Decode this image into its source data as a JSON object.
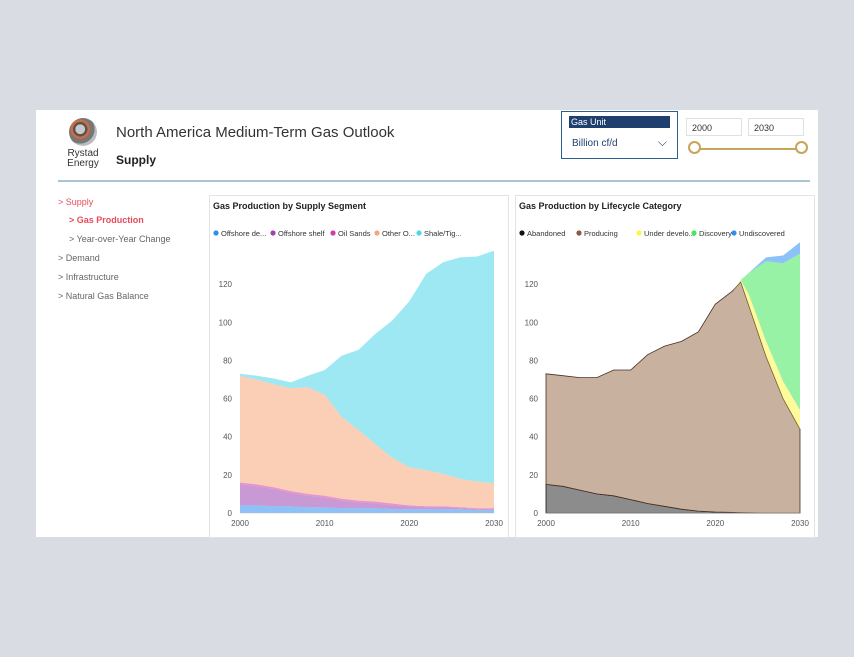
{
  "header": {
    "title": "North America Medium-Term Gas Outlook",
    "subtitle": "Supply",
    "logo_line1": "Rystad",
    "logo_line2": "Energy"
  },
  "controls": {
    "unit_label": "Gas Unit",
    "unit_value": "Billion cf/d",
    "year_start": "2000",
    "year_end": "2030"
  },
  "nav": [
    {
      "label": "> Supply"
    },
    {
      "label": "> Gas Production"
    },
    {
      "label": "> Year-over-Year Change"
    },
    {
      "label": "> Demand"
    },
    {
      "label": "> Infrastructure"
    },
    {
      "label": "> Natural Gas Balance"
    }
  ],
  "chart_data": [
    {
      "type": "area",
      "title": "Gas Production by Supply Segment",
      "stacked": true,
      "x": [
        2000,
        2002,
        2004,
        2006,
        2008,
        2010,
        2012,
        2014,
        2016,
        2018,
        2020,
        2022,
        2024,
        2026,
        2028,
        2030
      ],
      "series": [
        {
          "name": "Offshore de...",
          "color": "#2e8ff0",
          "values": [
            4,
            4,
            3.5,
            3.5,
            3,
            3,
            2.5,
            2.5,
            2.5,
            2,
            2,
            2,
            2,
            2,
            1.5,
            1.5
          ]
        },
        {
          "name": "Offshore shelf",
          "color": "#9b45b0",
          "values": [
            11,
            10,
            9,
            7,
            6,
            5,
            4,
            3,
            2.5,
            2,
            1.5,
            1,
            1,
            0.5,
            0.5,
            0.5
          ]
        },
        {
          "name": "Oil Sands",
          "color": "#d43da8",
          "values": [
            1,
            1,
            1,
            1,
            1,
            1,
            1,
            1,
            1,
            1,
            0.5,
            0.5,
            0.5,
            0.5,
            0.5,
            0.5
          ]
        },
        {
          "name": "Other O...",
          "color": "#f6a77a",
          "values": [
            56,
            55,
            54,
            54,
            56,
            53,
            43,
            37,
            30,
            24,
            20,
            19,
            17,
            15,
            14,
            13
          ]
        },
        {
          "name": "Shale/Tig...",
          "color": "#4fd6ea",
          "values": [
            1,
            2,
            3,
            3,
            6,
            13,
            32,
            42,
            58,
            72,
            87,
            103,
            111,
            116,
            118,
            122
          ]
        }
      ],
      "xlabel": "",
      "ylabel": "",
      "xlim": [
        2000,
        2030
      ],
      "ylim": [
        0,
        140
      ],
      "xticks": [
        2000,
        2010,
        2020,
        2030
      ],
      "yticks": [
        0,
        20,
        40,
        60,
        80,
        100,
        120
      ],
      "legend": "top"
    },
    {
      "type": "area",
      "title": "Gas Production by Lifecycle Category",
      "stacked": true,
      "x": [
        2000,
        2002,
        2004,
        2006,
        2008,
        2010,
        2012,
        2014,
        2016,
        2018,
        2020,
        2022,
        2023,
        2024,
        2026,
        2028,
        2030
      ],
      "series": [
        {
          "name": "Abandoned",
          "color": "#111111",
          "values": [
            15,
            14,
            12,
            10,
            9,
            7,
            5,
            3.5,
            2,
            1,
            0.5,
            0.3,
            0.2,
            0.1,
            0,
            0,
            0
          ]
        },
        {
          "name": "Producing",
          "color": "#8b5a44",
          "values": [
            58,
            58,
            59,
            61,
            66,
            68,
            78,
            84,
            88,
            94,
            109,
            116,
            121,
            108,
            82,
            60,
            44
          ]
        },
        {
          "name": "Under develo...",
          "color": "#fff54a",
          "values": [
            0,
            0,
            0,
            0,
            0,
            0,
            0,
            0,
            0,
            0,
            0,
            0,
            1,
            6,
            8,
            9,
            10
          ]
        },
        {
          "name": "Discovery",
          "color": "#44e85c",
          "values": [
            0,
            0,
            0,
            0,
            0,
            0,
            0,
            0,
            0,
            0,
            0,
            0,
            0,
            12,
            42,
            62,
            82
          ]
        },
        {
          "name": "Undiscovered",
          "color": "#2e8ff0",
          "values": [
            0,
            0,
            0,
            0,
            0,
            0,
            0,
            0,
            0,
            0,
            0,
            0,
            0,
            0,
            2,
            4,
            6
          ]
        }
      ],
      "xlabel": "",
      "ylabel": "",
      "xlim": [
        2000,
        2030
      ],
      "ylim": [
        0,
        140
      ],
      "xticks": [
        2000,
        2010,
        2020,
        2030
      ],
      "yticks": [
        0,
        20,
        40,
        60,
        80,
        100,
        120
      ],
      "legend": "top"
    }
  ]
}
